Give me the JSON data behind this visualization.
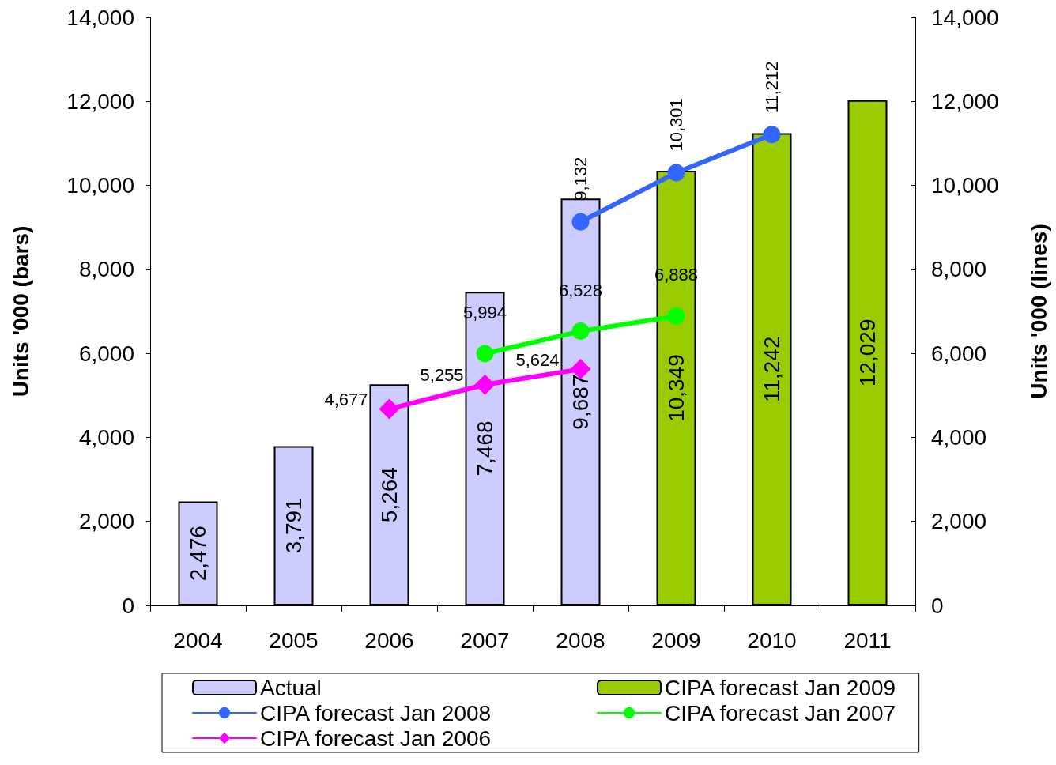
{
  "chart_data": {
    "type": "bar",
    "ylabel": "Units '000 (bars)",
    "y2label": "Units '000 (lines)",
    "categories": [
      "2004",
      "2005",
      "2006",
      "2007",
      "2008",
      "2009",
      "2010",
      "2011"
    ],
    "ylim": [
      0,
      14000
    ],
    "yticks": [
      0,
      {
        "value": 2000,
        "label": "2,000"
      },
      {
        "value": 4000,
        "label": "4,000"
      },
      {
        "value": 6000,
        "label": "6,000"
      },
      {
        "value": 8000,
        "label": "8,000"
      },
      {
        "value": 10000,
        "label": "10,000"
      },
      {
        "value": 12000,
        "label": "12,000"
      },
      {
        "value": 14000,
        "label": "14,000"
      }
    ],
    "y2lim": [
      0,
      14000
    ],
    "y2ticks": [
      0,
      {
        "value": 2000,
        "label": "2,000"
      },
      {
        "value": 4000,
        "label": "4,000"
      },
      {
        "value": 6000,
        "label": "6,000"
      },
      {
        "value": 8000,
        "label": "8,000"
      },
      {
        "value": 10000,
        "label": "10,000"
      },
      {
        "value": 12000,
        "label": "12,000"
      },
      {
        "value": 14000,
        "label": "14,000"
      }
    ],
    "grid": false,
    "legend": "bottom",
    "series": [
      {
        "name": "Actual",
        "color": "#ccccff",
        "values": [
          2476,
          3791,
          5264,
          7468,
          9687,
          null,
          null,
          null
        ],
        "value_labels": [
          "2,476",
          "3,791",
          "5,264",
          "7,468",
          "9,687",
          null,
          null,
          null
        ]
      },
      {
        "name": "CIPA forecast Jan 2009",
        "color": "#99cc00",
        "values": [
          null,
          null,
          null,
          null,
          null,
          10349,
          11242,
          12029
        ],
        "value_labels": [
          null,
          null,
          null,
          null,
          null,
          "10,349",
          "11,242",
          "12,029"
        ]
      },
      {
        "name": "CIPA forecast Jan 2008",
        "type": "line",
        "axis": "y2",
        "marker": "circle",
        "color": "#3366ff",
        "values": [
          null,
          null,
          null,
          null,
          9132,
          10301,
          11212,
          null
        ],
        "value_labels": [
          null,
          null,
          null,
          null,
          "9,132",
          "10,301",
          "11,212",
          null
        ]
      },
      {
        "name": "CIPA forecast Jan 2007",
        "type": "line",
        "axis": "y2",
        "marker": "circle",
        "color": "#00ff00",
        "values": [
          null,
          null,
          null,
          5994,
          6528,
          6888,
          null,
          null
        ],
        "value_labels": [
          null,
          null,
          null,
          "5,994",
          "6,528",
          "6,888",
          null,
          null
        ]
      },
      {
        "name": "CIPA forecast Jan 2006",
        "type": "line",
        "axis": "y2",
        "marker": "diamond",
        "color": "#ff00ff",
        "values": [
          null,
          null,
          4677,
          5255,
          5624,
          null,
          null,
          null
        ],
        "value_labels": [
          null,
          null,
          "4,677",
          "5,255",
          "5,624",
          null,
          null,
          null
        ]
      }
    ]
  }
}
